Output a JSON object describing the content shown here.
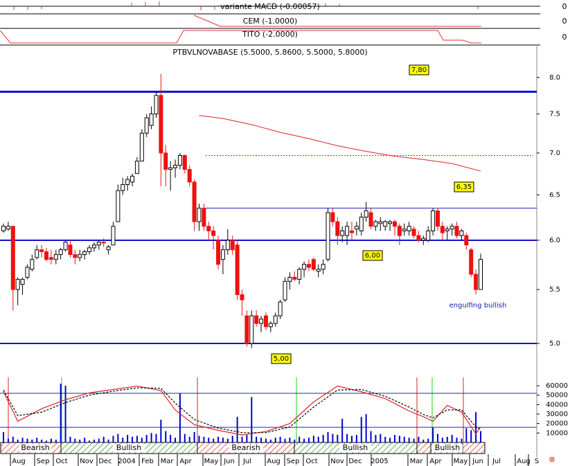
{
  "chart_data": {
    "type": "candlestick",
    "title": "PTBVLNOVABASE (5.5000, 5.8600, 5.5000, 5.8000)",
    "indicators": [
      {
        "label": "variante MACD (-0.00057)",
        "tick": 0
      },
      {
        "label": "CEM (-1.0000)",
        "tick": 0
      },
      {
        "label": "TITO (-2.0000)",
        "tick": 0
      }
    ],
    "log_scale": true,
    "ylim": [
      4.915,
      8.42
    ],
    "yticks": [
      {
        "value": 5,
        "label": "5.0"
      },
      5.5,
      {
        "value": 6,
        "label": "6.0"
      },
      6.5,
      {
        "value": 7,
        "label": "7.0"
      },
      7.5,
      {
        "value": 8,
        "label": "8.0"
      }
    ],
    "up_color": "#ffffff",
    "down_color": "#ee1111",
    "candles": [
      [
        6.1,
        6.18,
        6.08,
        6.15
      ],
      [
        6.12,
        6.2,
        6.1,
        6.15
      ],
      [
        6.15,
        6.15,
        5.3,
        5.5
      ],
      [
        5.5,
        5.62,
        5.35,
        5.6
      ],
      [
        5.55,
        5.62,
        5.45,
        5.6
      ],
      [
        5.62,
        5.75,
        5.6,
        5.72
      ],
      [
        5.7,
        5.85,
        5.68,
        5.8
      ],
      [
        5.82,
        5.95,
        5.8,
        5.9
      ],
      [
        5.9,
        5.95,
        5.82,
        5.88
      ],
      [
        5.88,
        5.92,
        5.78,
        5.8
      ],
      [
        5.82,
        5.9,
        5.75,
        5.8
      ],
      [
        5.8,
        5.9,
        5.75,
        5.85
      ],
      [
        5.85,
        5.92,
        5.8,
        5.9
      ],
      [
        5.9,
        6.0,
        5.88,
        5.98
      ],
      [
        5.95,
        6.0,
        5.82,
        5.85
      ],
      [
        5.85,
        5.9,
        5.75,
        5.82
      ],
      [
        5.82,
        5.9,
        5.78,
        5.85
      ],
      [
        5.85,
        5.9,
        5.8,
        5.88
      ],
      [
        5.88,
        5.95,
        5.85,
        5.92
      ],
      [
        5.92,
        5.98,
        5.88,
        5.95
      ],
      [
        5.95,
        6.0,
        5.9,
        5.98
      ],
      [
        5.98,
        6.02,
        5.93,
        5.97
      ],
      [
        5.9,
        5.95,
        5.85,
        5.93
      ],
      [
        5.95,
        6.2,
        5.95,
        6.15
      ],
      [
        6.2,
        6.62,
        6.2,
        6.55
      ],
      [
        6.55,
        6.7,
        6.5,
        6.62
      ],
      [
        6.62,
        6.72,
        6.55,
        6.68
      ],
      [
        6.65,
        6.75,
        6.6,
        6.72
      ],
      [
        6.75,
        6.95,
        6.75,
        6.9
      ],
      [
        6.9,
        7.3,
        6.9,
        7.25
      ],
      [
        7.25,
        7.5,
        7.2,
        7.45
      ],
      [
        7.35,
        7.6,
        7.3,
        7.5
      ],
      [
        7.5,
        7.8,
        7.45,
        7.75
      ],
      [
        7.75,
        8.05,
        6.6,
        7.0
      ],
      [
        7.0,
        7.1,
        6.6,
        6.8
      ],
      [
        6.8,
        6.9,
        6.55,
        6.82
      ],
      [
        6.82,
        6.92,
        6.7,
        6.85
      ],
      [
        6.85,
        7.0,
        6.8,
        6.97
      ],
      [
        6.97,
        6.98,
        6.75,
        6.8
      ],
      [
        6.8,
        6.85,
        6.6,
        6.65
      ],
      [
        6.65,
        6.68,
        6.1,
        6.2
      ],
      [
        6.2,
        6.4,
        6.1,
        6.35
      ],
      [
        6.35,
        6.4,
        6.1,
        6.15
      ],
      [
        6.15,
        6.2,
        6.0,
        6.1
      ],
      [
        6.1,
        6.15,
        5.9,
        6.05
      ],
      [
        6.0,
        6.05,
        5.7,
        5.75
      ],
      [
        5.8,
        5.95,
        5.65,
        5.9
      ],
      [
        5.9,
        6.12,
        5.85,
        6.0
      ],
      [
        6.0,
        6.05,
        5.85,
        5.9
      ],
      [
        5.95,
        6.0,
        5.4,
        5.45
      ],
      [
        5.45,
        5.5,
        5.25,
        5.4
      ],
      [
        5.25,
        5.3,
        4.97,
        5.0
      ],
      [
        5.0,
        5.3,
        4.96,
        5.25
      ],
      [
        5.25,
        5.3,
        5.15,
        5.18
      ],
      [
        5.18,
        5.25,
        5.1,
        5.22
      ],
      [
        5.25,
        5.28,
        5.12,
        5.15
      ],
      [
        5.15,
        5.2,
        5.1,
        5.18
      ],
      [
        5.18,
        5.28,
        5.15,
        5.25
      ],
      [
        5.25,
        5.4,
        5.22,
        5.38
      ],
      [
        5.4,
        5.62,
        5.38,
        5.58
      ],
      [
        5.58,
        5.67,
        5.5,
        5.62
      ],
      [
        5.62,
        5.68,
        5.58,
        5.6
      ],
      [
        5.6,
        5.72,
        5.55,
        5.7
      ],
      [
        5.7,
        5.78,
        5.62,
        5.75
      ],
      [
        5.75,
        5.8,
        5.68,
        5.72
      ],
      [
        5.8,
        5.82,
        5.68,
        5.7
      ],
      [
        5.68,
        5.75,
        5.62,
        5.7
      ],
      [
        5.7,
        5.8,
        5.65,
        5.75
      ],
      [
        5.8,
        6.35,
        5.78,
        6.3
      ],
      [
        6.3,
        6.35,
        6.15,
        6.2
      ],
      [
        6.2,
        6.25,
        5.95,
        6.05
      ],
      [
        6.05,
        6.15,
        5.98,
        6.1
      ],
      [
        6.05,
        6.2,
        5.95,
        6.15
      ],
      [
        6.1,
        6.2,
        6.0,
        6.08
      ],
      [
        6.12,
        6.2,
        6.05,
        6.15
      ],
      [
        6.1,
        6.3,
        6.05,
        6.25
      ],
      [
        6.25,
        6.42,
        6.2,
        6.32
      ],
      [
        6.3,
        6.35,
        6.12,
        6.15
      ],
      [
        6.15,
        6.22,
        6.1,
        6.2
      ],
      [
        6.18,
        6.25,
        6.1,
        6.2
      ],
      [
        6.15,
        6.22,
        6.1,
        6.2
      ],
      [
        6.18,
        6.22,
        6.1,
        6.2
      ],
      [
        6.2,
        6.22,
        6.05,
        6.15
      ],
      [
        6.15,
        6.18,
        5.95,
        6.05
      ],
      [
        6.1,
        6.18,
        6.05,
        6.12
      ],
      [
        6.1,
        6.2,
        6.05,
        6.15
      ],
      [
        6.12,
        6.15,
        6.02,
        6.05
      ],
      [
        6.05,
        6.1,
        5.98,
        6.0
      ],
      [
        6.0,
        6.05,
        5.95,
        6.02
      ],
      [
        6.0,
        6.15,
        5.98,
        6.1
      ],
      [
        6.1,
        6.35,
        6.05,
        6.32
      ],
      [
        6.32,
        6.35,
        6.1,
        6.15
      ],
      [
        6.15,
        6.2,
        6.0,
        6.08
      ],
      [
        6.1,
        6.15,
        6.0,
        6.12
      ],
      [
        6.12,
        6.18,
        6.05,
        6.15
      ],
      [
        6.15,
        6.2,
        6.02,
        6.05
      ],
      [
        6.05,
        6.12,
        6.0,
        6.1
      ],
      [
        6.05,
        6.08,
        5.9,
        5.95
      ],
      [
        5.9,
        5.92,
        5.62,
        5.65
      ],
      [
        5.65,
        5.7,
        5.45,
        5.5
      ],
      [
        5.5,
        5.86,
        5.5,
        5.8
      ]
    ],
    "moving_average": {
      "color": "#dd2222",
      "x": [
        41,
        46,
        52,
        58,
        64,
        70,
        76,
        82,
        88,
        94,
        100
      ],
      "values": [
        7.48,
        7.44,
        7.36,
        7.26,
        7.18,
        7.09,
        7.02,
        6.96,
        6.92,
        6.87,
        6.78
      ]
    },
    "levels": [
      {
        "value": 7.8,
        "label": "7,80"
      },
      {
        "value": 6.35,
        "label": "6,35"
      },
      {
        "value": 6,
        "label": "6,00"
      },
      {
        "value": 5,
        "label": "5,00"
      },
      {
        "value": 6.97
      }
    ],
    "annotation": "engulfing bullish",
    "volume": {
      "color": "#0000cc",
      "ylim": [
        0,
        68800
      ],
      "yticks": [
        10000,
        20000,
        30000,
        40000,
        50000,
        60000
      ],
      "levels": [
        52000,
        16000
      ],
      "values": [
        11000,
        4000,
        6000,
        3000,
        5000,
        4000,
        3000,
        5000,
        3000,
        2000,
        4000,
        3000,
        62000,
        60000,
        6000,
        4000,
        3000,
        5000,
        2000,
        3000,
        4000,
        6000,
        3000,
        7000,
        9000,
        5000,
        8000,
        6000,
        7000,
        5000,
        8000,
        10000,
        9000,
        24000,
        12000,
        8000,
        5000,
        52000,
        9000,
        6000,
        11000,
        7000,
        6000,
        5000,
        4000,
        6000,
        5000,
        4000,
        7000,
        27000,
        6000,
        8000,
        48000,
        6000,
        5000,
        4000,
        3000,
        5000,
        6000,
        4000,
        5000,
        3000,
        6000,
        4000,
        5000,
        7000,
        6000,
        8000,
        11000,
        9000,
        8000,
        25000,
        9000,
        7000,
        8000,
        27000,
        30000,
        12000,
        8000,
        9000,
        6000,
        5000,
        8000,
        7000,
        6000,
        5000,
        4000,
        6000,
        3000,
        4000,
        16000,
        9000,
        5000,
        6000,
        8000,
        5000,
        4000,
        15000,
        13000,
        32000,
        12000
      ]
    },
    "oscillator": {
      "ylim": [
        0,
        100
      ],
      "x": [
        0,
        3,
        8,
        13,
        18,
        23,
        28,
        33,
        36,
        40,
        45,
        50,
        55,
        60,
        65,
        70,
        75,
        80,
        85,
        88,
        90,
        93,
        96,
        99,
        100
      ],
      "series": [
        {
          "color": "#dd2222",
          "values": [
            82,
            30,
            52,
            68,
            80,
            86,
            92,
            84,
            50,
            24,
            14,
            6,
            12,
            26,
            64,
            92,
            82,
            70,
            48,
            38,
            30,
            58,
            46,
            8,
            20
          ]
        },
        {
          "color": "#000000",
          "values": [
            85,
            40,
            46,
            63,
            76,
            83,
            89,
            88,
            62,
            33,
            18,
            10,
            10,
            20,
            55,
            85,
            86,
            74,
            55,
            42,
            36,
            50,
            50,
            20,
            16
          ]
        }
      ]
    },
    "regimes": [
      "Bearish",
      "Bullish",
      "Bearish",
      "Bullish",
      "Bullish"
    ],
    "months": [
      "Aug",
      "Sep",
      "Oct",
      "Nov",
      "Dec",
      "2004",
      "Feb",
      "Mar",
      "Apr",
      "May",
      "Jun",
      "Jul",
      "Aug",
      "Sep",
      "Oct",
      "Nov",
      "Dec",
      "2005",
      "Mar",
      "Apr",
      "May",
      "Jun",
      "Jul",
      "Aug",
      "S"
    ]
  }
}
